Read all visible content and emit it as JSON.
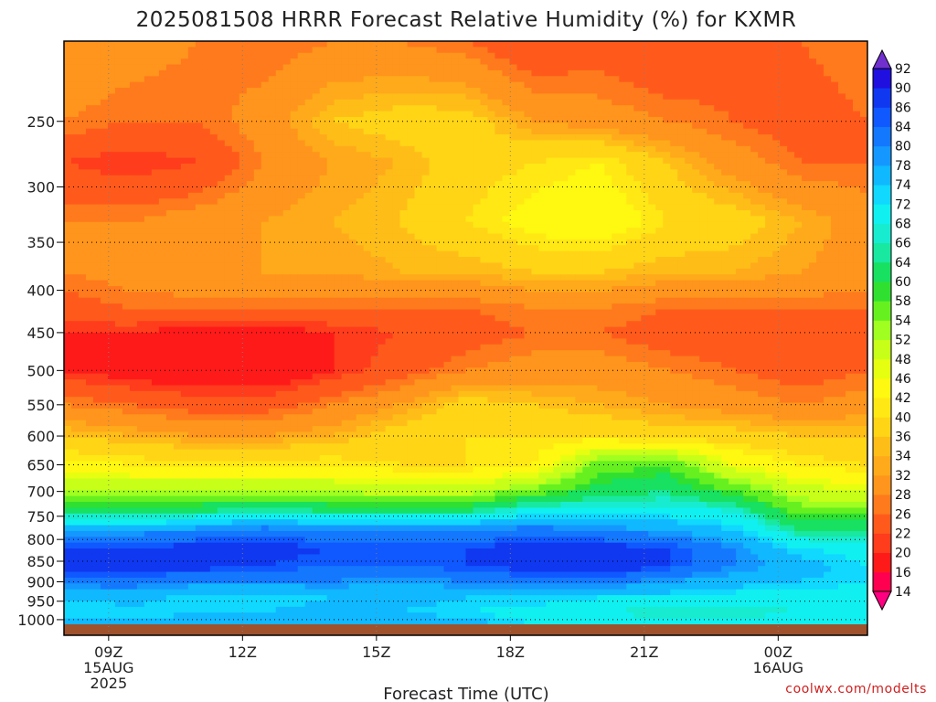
{
  "chart_data": {
    "type": "heatmap",
    "title": "2025081508 HRRR Forecast Relative Humidity (%) for KXMR",
    "xlabel": "Forecast Time (UTC)",
    "ylabel": "",
    "x_ticks": [
      {
        "hour": 9,
        "lines": [
          "09Z",
          "15AUG",
          "2025"
        ]
      },
      {
        "hour": 12,
        "lines": [
          "12Z"
        ]
      },
      {
        "hour": 15,
        "lines": [
          "15Z"
        ]
      },
      {
        "hour": 18,
        "lines": [
          "18Z"
        ]
      },
      {
        "hour": 21,
        "lines": [
          "21Z"
        ]
      },
      {
        "hour": 24,
        "lines": [
          "00Z",
          "16AUG"
        ]
      }
    ],
    "xlim_hours": [
      8,
      26
    ],
    "y_scale": "log",
    "y_ticks": [
      250,
      300,
      350,
      400,
      450,
      500,
      550,
      600,
      650,
      700,
      750,
      800,
      850,
      900,
      950,
      1000
    ],
    "ylim_hPa": [
      200,
      1013
    ],
    "grid": true,
    "colorbar": {
      "position": "right",
      "levels": [
        14,
        16,
        20,
        22,
        26,
        28,
        32,
        34,
        36,
        40,
        42,
        46,
        48,
        52,
        54,
        58,
        60,
        64,
        66,
        68,
        72,
        74,
        78,
        80,
        84,
        86,
        90,
        92
      ],
      "colors": [
        "#ff0080",
        "#ff0050",
        "#ff1a1a",
        "#ff3c1c",
        "#ff5a1c",
        "#ff7a1c",
        "#ff951c",
        "#ffaa1a",
        "#ffbd18",
        "#ffd516",
        "#ffe814",
        "#fff810",
        "#e6ff10",
        "#c8ff18",
        "#a0ff20",
        "#66f020",
        "#30e030",
        "#18e060",
        "#18e8a0",
        "#18ecd0",
        "#10f0f0",
        "#10d8ff",
        "#10b8ff",
        "#1498ff",
        "#1478ff",
        "#1058ff",
        "#1038f0",
        "#2010e0",
        "#7030d0"
      ]
    },
    "rh_profiles": [
      {
        "hour": 8.0,
        "p": [
          200,
          250,
          280,
          330,
          380,
          420,
          450,
          500,
          550,
          600,
          650,
          700,
          740,
          780,
          820,
          860,
          900,
          940,
          980,
          1013
        ],
        "rh": [
          32,
          28,
          22,
          28,
          28,
          24,
          20,
          20,
          28,
          36,
          44,
          52,
          62,
          78,
          86,
          88,
          82,
          74,
          72,
          78
        ]
      },
      {
        "hour": 9.5,
        "p": [
          200,
          250,
          280,
          330,
          380,
          420,
          450,
          500,
          550,
          600,
          650,
          700,
          740,
          780,
          820,
          860,
          900,
          940,
          980,
          1013
        ],
        "rh": [
          30,
          26,
          20,
          28,
          30,
          26,
          20,
          18,
          26,
          34,
          42,
          52,
          62,
          78,
          86,
          88,
          82,
          76,
          72,
          76
        ]
      },
      {
        "hour": 11.0,
        "p": [
          200,
          250,
          280,
          330,
          380,
          420,
          450,
          500,
          550,
          600,
          650,
          700,
          740,
          780,
          820,
          860,
          900,
          940,
          980,
          1013
        ],
        "rh": [
          28,
          26,
          22,
          30,
          32,
          26,
          18,
          16,
          24,
          32,
          42,
          52,
          64,
          80,
          88,
          88,
          80,
          72,
          74,
          76
        ]
      },
      {
        "hour": 12.5,
        "p": [
          200,
          250,
          280,
          330,
          380,
          420,
          450,
          500,
          550,
          600,
          650,
          700,
          740,
          780,
          820,
          860,
          900,
          940,
          980,
          1013
        ],
        "rh": [
          26,
          30,
          28,
          32,
          32,
          26,
          18,
          16,
          24,
          32,
          42,
          52,
          66,
          82,
          88,
          86,
          80,
          72,
          74,
          76
        ]
      },
      {
        "hour": 14.0,
        "p": [
          200,
          250,
          280,
          330,
          380,
          420,
          450,
          500,
          550,
          600,
          650,
          700,
          740,
          780,
          820,
          860,
          900,
          940,
          980,
          1013
        ],
        "rh": [
          28,
          36,
          32,
          34,
          32,
          26,
          20,
          20,
          28,
          34,
          42,
          52,
          64,
          80,
          86,
          84,
          80,
          74,
          76,
          78
        ]
      },
      {
        "hour": 15.5,
        "p": [
          200,
          250,
          280,
          330,
          380,
          420,
          450,
          500,
          550,
          600,
          650,
          700,
          740,
          780,
          820,
          860,
          900,
          940,
          980,
          1013
        ],
        "rh": [
          28,
          38,
          34,
          36,
          34,
          26,
          22,
          24,
          32,
          38,
          40,
          50,
          64,
          80,
          86,
          84,
          78,
          76,
          74,
          78
        ]
      },
      {
        "hour": 17.0,
        "p": [
          200,
          250,
          280,
          330,
          380,
          420,
          450,
          500,
          550,
          600,
          650,
          700,
          740,
          780,
          820,
          860,
          900,
          940,
          980,
          1013
        ],
        "rh": [
          26,
          38,
          38,
          40,
          34,
          26,
          24,
          28,
          38,
          40,
          40,
          50,
          64,
          80,
          86,
          86,
          80,
          74,
          72,
          76
        ]
      },
      {
        "hour": 18.5,
        "p": [
          200,
          250,
          280,
          330,
          380,
          420,
          450,
          500,
          550,
          600,
          650,
          700,
          740,
          780,
          820,
          860,
          900,
          940,
          980,
          1013
        ],
        "rh": [
          22,
          32,
          40,
          44,
          36,
          28,
          26,
          30,
          36,
          40,
          42,
          56,
          70,
          82,
          88,
          88,
          82,
          74,
          70,
          72
        ]
      },
      {
        "hour": 20.0,
        "p": [
          200,
          250,
          280,
          330,
          380,
          420,
          450,
          500,
          550,
          600,
          650,
          700,
          740,
          780,
          820,
          860,
          900,
          940,
          980,
          1013
        ],
        "rh": [
          24,
          30,
          42,
          46,
          36,
          28,
          26,
          30,
          34,
          40,
          56,
          62,
          70,
          80,
          88,
          90,
          82,
          72,
          68,
          72
        ]
      },
      {
        "hour": 21.5,
        "p": [
          200,
          250,
          280,
          330,
          380,
          420,
          450,
          500,
          550,
          600,
          650,
          700,
          740,
          780,
          820,
          860,
          900,
          940,
          980,
          1013
        ],
        "rh": [
          22,
          28,
          36,
          40,
          34,
          26,
          24,
          28,
          32,
          38,
          58,
          64,
          70,
          78,
          86,
          86,
          78,
          72,
          66,
          70
        ]
      },
      {
        "hour": 23.0,
        "p": [
          200,
          250,
          280,
          330,
          380,
          420,
          450,
          500,
          550,
          600,
          650,
          700,
          740,
          780,
          820,
          860,
          900,
          940,
          980,
          1013
        ],
        "rh": [
          24,
          26,
          30,
          38,
          34,
          26,
          24,
          26,
          30,
          38,
          46,
          58,
          68,
          74,
          80,
          80,
          76,
          70,
          66,
          70
        ]
      },
      {
        "hour": 24.5,
        "p": [
          200,
          250,
          280,
          330,
          380,
          420,
          450,
          500,
          550,
          600,
          650,
          700,
          740,
          780,
          820,
          860,
          900,
          940,
          980,
          1013
        ],
        "rh": [
          26,
          24,
          26,
          34,
          32,
          26,
          22,
          24,
          28,
          36,
          42,
          50,
          56,
          64,
          72,
          76,
          74,
          70,
          68,
          72
        ]
      },
      {
        "hour": 26.0,
        "p": [
          200,
          250,
          280,
          330,
          380,
          420,
          450,
          500,
          550,
          600,
          650,
          700,
          740,
          780,
          820,
          860,
          900,
          940,
          980,
          1013
        ],
        "rh": [
          28,
          26,
          26,
          30,
          30,
          26,
          24,
          26,
          30,
          36,
          40,
          48,
          56,
          64,
          70,
          72,
          72,
          70,
          68,
          70
        ]
      }
    ]
  },
  "credit": "coolwx.com/modelts"
}
